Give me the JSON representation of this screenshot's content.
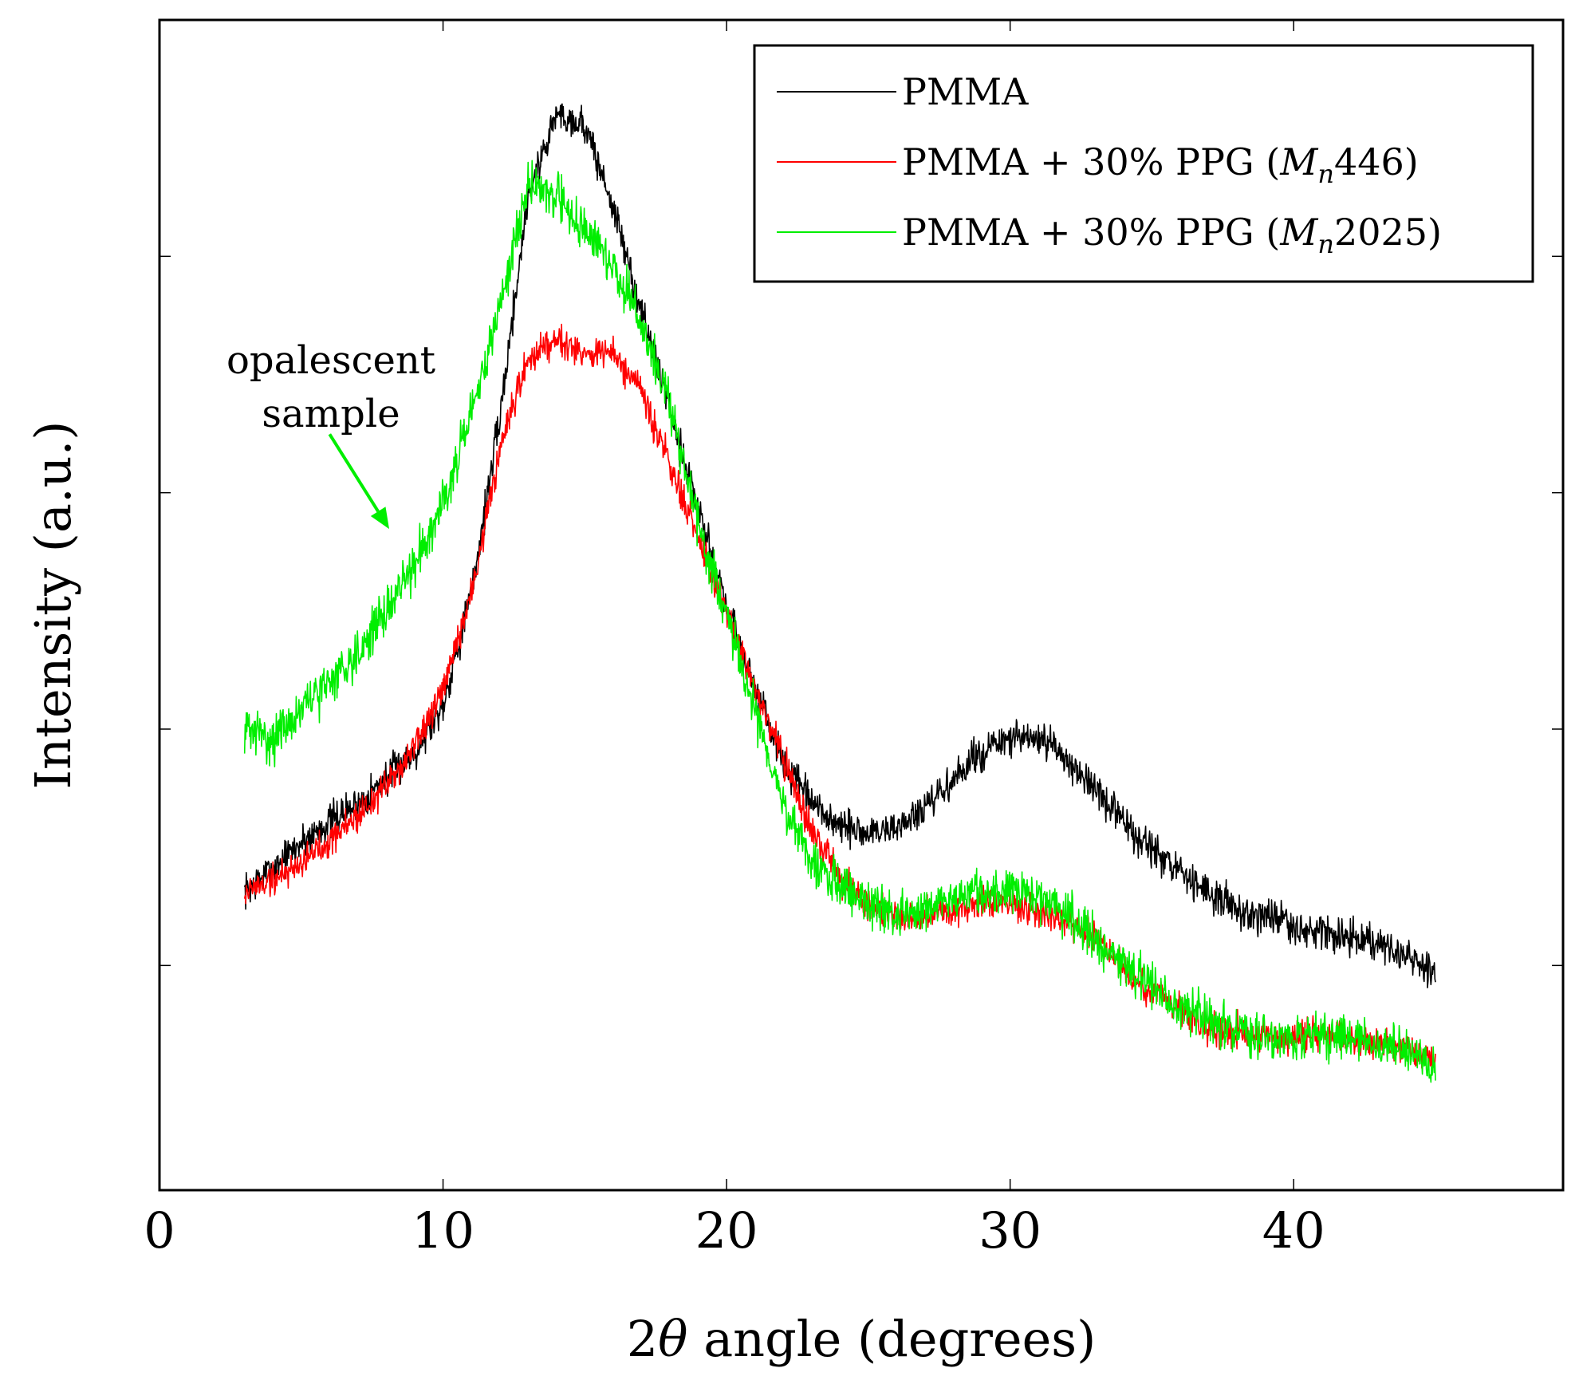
{
  "chart_data": {
    "type": "line",
    "title": "",
    "xlabel_prefix": "2",
    "xlabel_symbol": "θ",
    "xlabel_suffix": " angle (degrees)",
    "ylabel": "Intensity (a.u.)",
    "xlim": [
      0,
      49.5
    ],
    "ylim": [
      0,
      100
    ],
    "x_ticks": [
      0,
      10,
      20,
      30,
      40
    ],
    "x_tick_labels": [
      "0",
      "10",
      "20",
      "30",
      "40"
    ],
    "y_ticks": [
      19.2,
      39.4,
      59.6,
      79.8
    ],
    "y_tick_labels": [
      "",
      "",
      "",
      ""
    ],
    "grid": false,
    "legend_position": "top-right",
    "annotation": {
      "line1": "opalescent",
      "line2": "sample",
      "color": "#00ee00",
      "arrow_from": [
        6.0,
        64.6
      ],
      "arrow_to": [
        8.1,
        56.5
      ]
    },
    "series": [
      {
        "name": "PMMA",
        "legend_prefix": "PMMA",
        "legend_math": "",
        "legend_sub": "",
        "legend_suffix": "",
        "color": "#000000",
        "noise": 1.1,
        "seed": 7,
        "x": [
          3,
          4,
          5,
          6,
          7,
          8,
          9,
          10,
          11,
          12,
          13,
          14,
          15,
          16,
          17,
          18,
          19,
          20,
          21,
          22,
          23,
          24,
          25,
          26,
          27,
          28,
          29,
          30,
          31,
          32,
          33,
          34,
          35,
          36,
          37,
          38,
          39,
          40,
          41,
          42,
          43,
          44,
          45
        ],
        "values": [
          25.5,
          27.5,
          29.7,
          31.5,
          33.0,
          35.2,
          37.5,
          41.5,
          51.0,
          66.0,
          85.0,
          92.0,
          91.0,
          84.0,
          75.0,
          67.0,
          58.0,
          50.0,
          43.0,
          36.5,
          33.0,
          31.0,
          30.5,
          31.0,
          32.5,
          35.0,
          37.5,
          38.5,
          38.5,
          37.0,
          34.0,
          31.5,
          29.0,
          27.0,
          25.5,
          24.0,
          23.5,
          22.5,
          22.0,
          21.5,
          21.0,
          20.0,
          18.5
        ]
      },
      {
        "name": "PMMA + 30% PPG (Mn 446)",
        "legend_prefix": "PMMA + 30% PPG (",
        "legend_math": "M",
        "legend_sub": "n",
        "legend_suffix": "446)",
        "color": "#ff0000",
        "noise": 1.0,
        "seed": 19,
        "x": [
          3,
          4,
          5,
          6,
          7,
          8,
          9,
          10,
          11,
          12,
          13,
          14,
          15,
          16,
          17,
          18,
          19,
          20,
          21,
          22,
          23,
          24,
          25,
          26,
          27,
          28,
          29,
          30,
          31,
          32,
          33,
          34,
          35,
          36,
          37,
          38,
          39,
          40,
          41,
          42,
          43,
          44,
          45
        ],
        "values": [
          25.5,
          26.5,
          28.0,
          30.0,
          32.0,
          34.5,
          38.0,
          42.5,
          51.0,
          63.0,
          71.0,
          73.0,
          71.5,
          71.5,
          68.0,
          62.0,
          55.5,
          49.5,
          43.0,
          37.0,
          30.5,
          27.0,
          24.5,
          23.5,
          23.5,
          24.0,
          24.5,
          24.5,
          24.0,
          23.0,
          21.5,
          19.0,
          17.0,
          15.5,
          14.0,
          13.5,
          13.0,
          13.0,
          13.5,
          13.0,
          12.5,
          12.0,
          11.0
        ]
      },
      {
        "name": "PMMA + 30% PPG (Mn 2025)",
        "legend_prefix": "PMMA + 30% PPG (",
        "legend_math": "M",
        "legend_sub": "n",
        "legend_suffix": "2025)",
        "color": "#00ee00",
        "noise": 1.4,
        "seed": 31,
        "x": [
          3,
          4,
          5,
          6,
          7,
          8,
          9,
          10,
          11,
          12,
          13,
          14,
          15,
          16,
          17,
          18,
          19,
          20,
          21,
          22,
          23,
          24,
          25,
          26,
          27,
          28,
          29,
          30,
          31,
          32,
          33,
          34,
          35,
          36,
          37,
          38,
          39,
          40,
          41,
          42,
          43,
          44,
          45
        ],
        "values": [
          39.5,
          38.5,
          41.0,
          43.5,
          46.0,
          49.5,
          53.5,
          59.0,
          66.0,
          75.5,
          86.0,
          85.0,
          82.0,
          79.0,
          74.0,
          67.0,
          57.0,
          49.0,
          41.0,
          33.0,
          28.0,
          26.0,
          24.5,
          23.5,
          24.0,
          25.0,
          25.5,
          25.5,
          25.0,
          23.5,
          21.5,
          19.5,
          17.5,
          15.5,
          14.5,
          13.5,
          13.0,
          13.0,
          13.5,
          13.0,
          12.5,
          12.0,
          10.5
        ]
      }
    ]
  }
}
